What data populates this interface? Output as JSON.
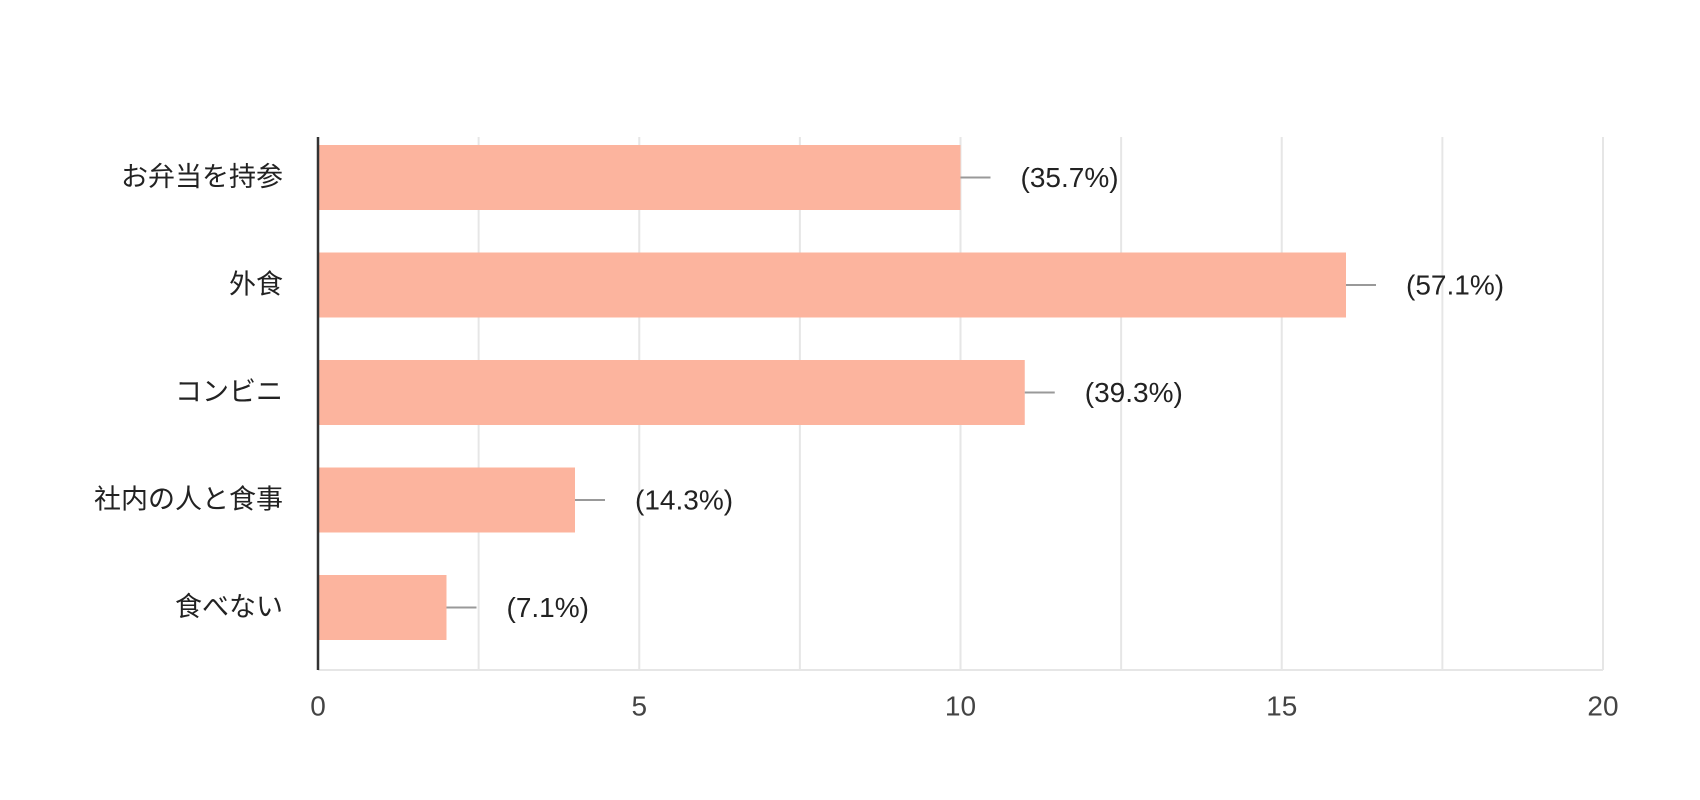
{
  "chart_data": {
    "type": "bar",
    "orientation": "horizontal",
    "categories": [
      "お弁当を持参",
      "外食",
      "コンビニ",
      "社内の人と食事",
      "食べない"
    ],
    "values": [
      10,
      16,
      11,
      4,
      2
    ],
    "data_labels": [
      "(35.7%)",
      "(57.1%)",
      "(39.3%)",
      "(14.3%)",
      "(7.1%)"
    ],
    "xlim": [
      0,
      20
    ],
    "x_ticks": [
      0,
      5,
      10,
      15,
      20
    ],
    "x_tick_labels": [
      "0",
      "5",
      "10",
      "15",
      "20"
    ],
    "grid": true,
    "bar_color": "#fcb49e",
    "leader_color": "#999999",
    "grid_color": "#e6e6e6",
    "axis_color": "#333333",
    "title": "",
    "xlabel": "",
    "ylabel": ""
  }
}
